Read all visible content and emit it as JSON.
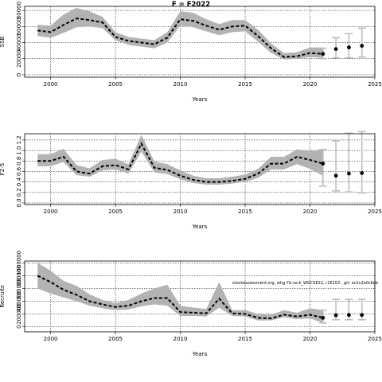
{
  "figure_title": "F = F2022",
  "chart_data": [
    {
      "type": "area",
      "ylabel": "SSB",
      "xlabel": "Years",
      "xlim": [
        1998,
        2025
      ],
      "ylim": [
        -3000,
        85000
      ],
      "xticks": [
        2000,
        2005,
        2010,
        2015,
        2020,
        2025
      ],
      "yticks": [
        0,
        20000,
        40000,
        60000,
        80000
      ],
      "ytick_labels": [
        "0",
        "20000",
        "40000",
        "60000",
        "80000"
      ],
      "grid": true,
      "annotation": "",
      "years": [
        1999,
        2000,
        2001,
        2002,
        2003,
        2004,
        2005,
        2006,
        2007,
        2008,
        2009,
        2010,
        2011,
        2012,
        2013,
        2014,
        2015,
        2016,
        2017,
        2018,
        2019,
        2020,
        2021
      ],
      "estimate": [
        55000,
        53000,
        62000,
        70000,
        68000,
        65000,
        47000,
        42000,
        40000,
        38000,
        46000,
        69000,
        67000,
        61000,
        56000,
        60000,
        61000,
        48000,
        33000,
        22000,
        23000,
        27000,
        26000
      ],
      "lower": [
        48000,
        46000,
        52000,
        59000,
        60000,
        58000,
        43000,
        37000,
        35000,
        33000,
        40000,
        61000,
        59000,
        54000,
        49000,
        53000,
        54000,
        41000,
        27000,
        19000,
        20000,
        22000,
        21000
      ],
      "upper": [
        62000,
        61000,
        75000,
        83000,
        79000,
        72000,
        53000,
        47000,
        45000,
        43000,
        53000,
        79000,
        77000,
        69000,
        63000,
        68000,
        68000,
        56000,
        39000,
        27000,
        28000,
        34000,
        34000
      ],
      "projection": {
        "years": [
          2022,
          2023,
          2024
        ],
        "estimate": [
          32000,
          34000,
          36000
        ],
        "lower": [
          21000,
          21000,
          22000
        ],
        "upper": [
          46000,
          51000,
          58000
        ]
      },
      "projection_bar_2021": {
        "lower": 20000,
        "upper": 33000
      }
    },
    {
      "type": "area",
      "ylabel": "F2-5",
      "xlabel": "Years",
      "xlim": [
        1998,
        2025
      ],
      "ylim": [
        -0.03,
        1.32
      ],
      "xticks": [
        2000,
        2005,
        2010,
        2015,
        2020,
        2025
      ],
      "yticks": [
        0.0,
        0.2,
        0.4,
        0.6,
        0.8,
        1.0,
        1.2
      ],
      "ytick_labels": [
        "0.0",
        "0.2",
        "0.4",
        "0.6",
        "0.8",
        "1.0",
        "1.2"
      ],
      "grid": true,
      "annotation": "",
      "years": [
        1999,
        2000,
        2001,
        2002,
        2003,
        2004,
        2005,
        2006,
        2007,
        2008,
        2009,
        2010,
        2011,
        2012,
        2013,
        2014,
        2015,
        2016,
        2017,
        2018,
        2019,
        2020,
        2021
      ],
      "estimate": [
        0.8,
        0.8,
        0.88,
        0.6,
        0.56,
        0.7,
        0.72,
        0.64,
        1.13,
        0.67,
        0.63,
        0.52,
        0.44,
        0.4,
        0.4,
        0.42,
        0.46,
        0.56,
        0.75,
        0.75,
        0.88,
        0.82,
        0.75
      ],
      "lower": [
        0.7,
        0.7,
        0.78,
        0.53,
        0.5,
        0.62,
        0.64,
        0.56,
        0.98,
        0.58,
        0.55,
        0.45,
        0.38,
        0.35,
        0.35,
        0.37,
        0.4,
        0.48,
        0.64,
        0.64,
        0.74,
        0.65,
        0.52
      ],
      "upper": [
        0.93,
        0.93,
        1.03,
        0.72,
        0.66,
        0.82,
        0.84,
        0.74,
        1.3,
        0.79,
        0.74,
        0.62,
        0.52,
        0.47,
        0.47,
        0.5,
        0.54,
        0.65,
        0.88,
        0.88,
        1.02,
        0.99,
        1.02
      ],
      "projection": {
        "years": [
          2022,
          2023,
          2024
        ],
        "estimate": [
          0.52,
          0.56,
          0.57
        ],
        "lower": [
          0.23,
          0.21,
          0.19
        ],
        "upper": [
          1.18,
          1.33,
          1.36
        ]
      },
      "projection_bar_2021": {
        "lower": 0.32,
        "upper": 1.02
      }
    },
    {
      "type": "area",
      "ylabel": "Recruits",
      "xlabel": "Years",
      "xlim": [
        1998,
        2025
      ],
      "ylim": [
        -80000,
        1030000
      ],
      "xticks": [
        2000,
        2005,
        2010,
        2015,
        2020,
        2025
      ],
      "yticks": [
        0,
        200000,
        400000,
        600000,
        800000,
        1000000
      ],
      "ytick_labels": [
        "0",
        "200000",
        "400000",
        "600000",
        "800000",
        "1000000"
      ],
      "grid": true,
      "annotation": "stockassessment.org, whg.7b-ce-k_WGCSE22, r16153 , git: ec2c2a0c6eb",
      "years": [
        1999,
        2000,
        2001,
        2002,
        2003,
        2004,
        2005,
        2006,
        2007,
        2008,
        2009,
        2010,
        2011,
        2012,
        2013,
        2014,
        2015,
        2016,
        2017,
        2018,
        2019,
        2020,
        2021
      ],
      "estimate": [
        800000,
        700000,
        580000,
        500000,
        400000,
        350000,
        310000,
        330000,
        400000,
        450000,
        450000,
        230000,
        220000,
        210000,
        440000,
        210000,
        200000,
        140000,
        130000,
        190000,
        160000,
        190000,
        140000
      ],
      "lower": [
        600000,
        520000,
        460000,
        400000,
        330000,
        290000,
        260000,
        270000,
        320000,
        350000,
        330000,
        170000,
        170000,
        160000,
        300000,
        170000,
        160000,
        100000,
        100000,
        150000,
        120000,
        130000,
        60000
      ],
      "upper": [
        1000000,
        880000,
        720000,
        640000,
        510000,
        420000,
        370000,
        420000,
        520000,
        600000,
        660000,
        330000,
        300000,
        280000,
        700000,
        260000,
        260000,
        200000,
        190000,
        260000,
        220000,
        290000,
        260000
      ],
      "projection": {
        "years": [
          2022,
          2023,
          2024
        ],
        "estimate": [
          180000,
          185000,
          185000
        ],
        "lower": [
          110000,
          110000,
          110000
        ],
        "upper": [
          430000,
          430000,
          430000
        ]
      },
      "projection_bar_2021": {
        "lower": 60000,
        "upper": 260000
      }
    }
  ]
}
